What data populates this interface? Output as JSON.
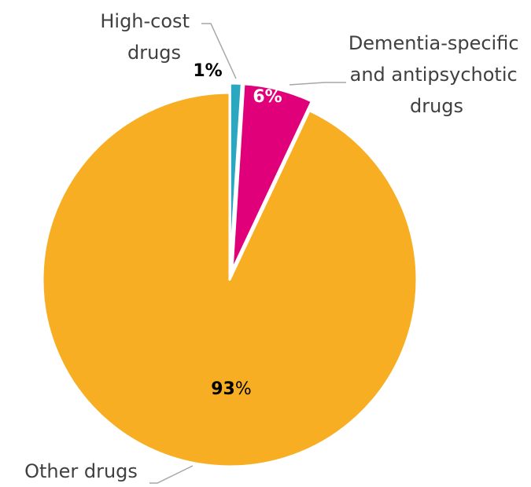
{
  "chart_data": {
    "type": "pie",
    "title": "",
    "slices": [
      {
        "label_lines": [
          "High-cost",
          "drugs"
        ],
        "value": 1,
        "pct_label": "1%",
        "color": "#2ba8c0",
        "pct_color": "#000000",
        "exploded": true
      },
      {
        "label_lines": [
          "Dementia-specific",
          "and antipsychotic",
          "drugs"
        ],
        "value": 6,
        "pct_label": "6%",
        "color": "#e0007a",
        "pct_color": "#ffffff",
        "exploded": true
      },
      {
        "label_lines": [
          "Other drugs"
        ],
        "value": 93,
        "pct_num": "93",
        "pct_sign": "%",
        "color": "#f7ae22",
        "pct_color": "#000000",
        "exploded": false
      }
    ],
    "start_angle_deg": 0,
    "direction": "clockwise",
    "legend": "none"
  }
}
